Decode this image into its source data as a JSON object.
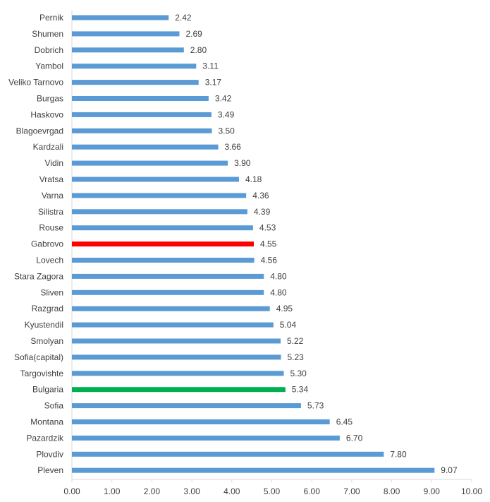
{
  "chart_data": {
    "type": "bar",
    "orientation": "horizontal",
    "title": "",
    "xlabel": "",
    "ylabel": "",
    "xlim": [
      0,
      10
    ],
    "x_ticks": [
      "0.00",
      "1.00",
      "2.00",
      "3.00",
      "4.00",
      "5.00",
      "6.00",
      "7.00",
      "8.00",
      "9.00",
      "10.00"
    ],
    "grid": false,
    "categories": [
      "Pernik",
      "Shumen",
      "Dobrich",
      "Yambol",
      "Veliko Tarnovo",
      "Burgas",
      "Haskovo",
      "Blagoevrgad",
      "Kardzali",
      "Vidin",
      "Vratsa",
      "Varna",
      "Silistra",
      "Rouse",
      "Gabrovo",
      "Lovech",
      "Stara Zagora",
      "Sliven",
      "Razgrad",
      "Kyustendil",
      "Smolyan",
      "Sofia(capital)",
      "Targovishte",
      "Bulgaria",
      "Sofia",
      "Montana",
      "Pazardzik",
      "Plovdiv",
      "Pleven"
    ],
    "values": [
      2.42,
      2.69,
      2.8,
      3.11,
      3.17,
      3.42,
      3.49,
      3.5,
      3.66,
      3.9,
      4.18,
      4.36,
      4.39,
      4.53,
      4.55,
      4.56,
      4.8,
      4.8,
      4.95,
      5.04,
      5.22,
      5.23,
      5.3,
      5.34,
      5.73,
      6.45,
      6.7,
      7.8,
      9.07
    ],
    "value_labels": [
      "2.42",
      "2.69",
      "2.80",
      "3.11",
      "3.17",
      "3.42",
      "3.49",
      "3.50",
      "3.66",
      "3.90",
      "4.18",
      "4.36",
      "4.39",
      "4.53",
      "4.55",
      "4.56",
      "4.80",
      "4.80",
      "4.95",
      "5.04",
      "5.22",
      "5.23",
      "5.30",
      "5.34",
      "5.73",
      "6.45",
      "6.70",
      "7.80",
      "9.07"
    ],
    "colors": {
      "default": "#5B9BD5",
      "Gabrovo": "#FF0000",
      "Bulgaria": "#00B050",
      "axis": "#D9D9D9",
      "text": "#404040"
    }
  }
}
